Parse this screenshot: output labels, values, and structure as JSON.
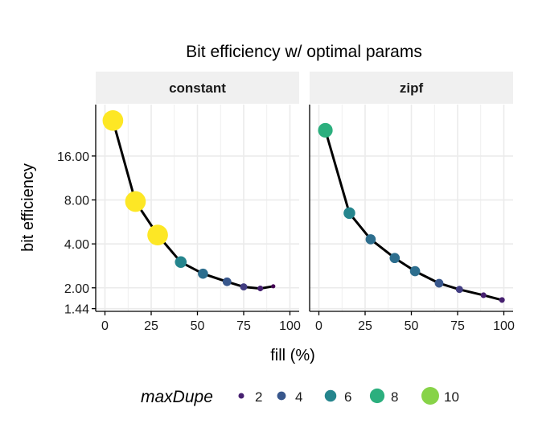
{
  "chart_data": {
    "type": "line",
    "title": "Bit efficiency w/ optimal params",
    "xlabel": "fill (%)",
    "ylabel": "bit efficiency",
    "y_scale": "log2",
    "xlim": [
      -5,
      105
    ],
    "ylim": [
      1.38,
      36
    ],
    "x_ticks": [
      0,
      25,
      50,
      75,
      100
    ],
    "x_tick_labels": [
      "0",
      "25",
      "50",
      "75",
      "100"
    ],
    "y_ticks": [
      1.44,
      2,
      4,
      8,
      16
    ],
    "y_tick_labels": [
      "1.44",
      "2.00",
      "4.00",
      "8.00",
      "16.00"
    ],
    "grid": true,
    "legend": {
      "title": "maxDupe",
      "position": "bottom",
      "entries": [
        {
          "label": "2",
          "value": 2
        },
        {
          "label": "4",
          "value": 4
        },
        {
          "label": "6",
          "value": 6
        },
        {
          "label": "8",
          "value": 8
        },
        {
          "label": "10",
          "value": 10
        }
      ]
    },
    "color_scale": "viridis",
    "color_range": [
      1,
      12
    ],
    "facets": [
      {
        "label": "constant",
        "points": [
          {
            "fill": 4.3,
            "efficiency": 28.0,
            "maxDupe": 12
          },
          {
            "fill": 16.5,
            "efficiency": 7.8,
            "maxDupe": 12
          },
          {
            "fill": 28.5,
            "efficiency": 4.6,
            "maxDupe": 12
          },
          {
            "fill": 41,
            "efficiency": 3.0,
            "maxDupe": 6
          },
          {
            "fill": 53,
            "efficiency": 2.5,
            "maxDupe": 5
          },
          {
            "fill": 66,
            "efficiency": 2.2,
            "maxDupe": 4
          },
          {
            "fill": 75,
            "efficiency": 2.03,
            "maxDupe": 3
          },
          {
            "fill": 84,
            "efficiency": 1.98,
            "maxDupe": 2
          },
          {
            "fill": 91,
            "efficiency": 2.05,
            "maxDupe": 1
          }
        ]
      },
      {
        "label": "zipf",
        "points": [
          {
            "fill": 3.5,
            "efficiency": 24.0,
            "maxDupe": 8
          },
          {
            "fill": 16.5,
            "efficiency": 6.5,
            "maxDupe": 6
          },
          {
            "fill": 28,
            "efficiency": 4.3,
            "maxDupe": 5
          },
          {
            "fill": 41,
            "efficiency": 3.2,
            "maxDupe": 5
          },
          {
            "fill": 52,
            "efficiency": 2.6,
            "maxDupe": 5
          },
          {
            "fill": 65,
            "efficiency": 2.15,
            "maxDupe": 4
          },
          {
            "fill": 76,
            "efficiency": 1.95,
            "maxDupe": 3
          },
          {
            "fill": 89,
            "efficiency": 1.78,
            "maxDupe": 2
          },
          {
            "fill": 99,
            "efficiency": 1.65,
            "maxDupe": 2
          }
        ]
      }
    ]
  },
  "colors": {
    "line": "#000000",
    "strip_bg": "#f0f0f0",
    "grid": "#ebebeb",
    "axis": "#000000",
    "tick_text": "#1a1a1a"
  }
}
